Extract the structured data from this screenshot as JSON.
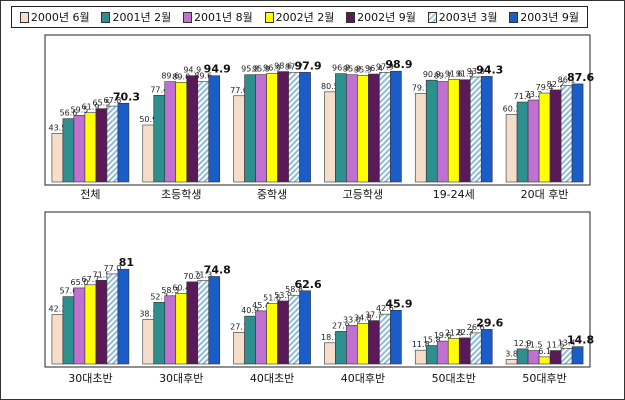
{
  "chart_data": [
    {
      "type": "bar",
      "categories": [
        "전체",
        "초등학생",
        "중학생",
        "고등학생",
        "19-24세",
        "20대 후반"
      ],
      "series": [
        {
          "name": "2000년 6월",
          "values": [
            43.5,
            50.9,
            77.0,
            80.5,
            79.1,
            60.3
          ]
        },
        {
          "name": "2001년 2월",
          "values": [
            56.6,
            77.4,
            95.8,
            96.8,
            90.9,
            71.4
          ]
        },
        {
          "name": "2001년 8월",
          "values": [
            59.5,
            89.6,
            95.9,
            95.8,
            89.7,
            73.2
          ]
        },
        {
          "name": "2002년 2월",
          "values": [
            61.9,
            89.0,
            96.9,
            95.3,
            91.6,
            79.4
          ]
        },
        {
          "name": "2002년 9월",
          "values": [
            65.5,
            94.9,
            98.6,
            96.4,
            91.3,
            82.2
          ]
        },
        {
          "name": "2003년 3월",
          "values": [
            67.8,
            89.6,
            97.7,
            97.9,
            93.8,
            86.1
          ]
        },
        {
          "name": "2003년 9월",
          "values": [
            70.3,
            94.9,
            97.9,
            98.9,
            94.3,
            87.6
          ]
        }
      ],
      "ylim": [
        0,
        100
      ]
    },
    {
      "type": "bar",
      "categories": [
        "30대초반",
        "30대후반",
        "40대초반",
        "40대후반",
        "50대초반",
        "50대후반"
      ],
      "series": [
        {
          "name": "2000년 6월",
          "values": [
            42.3,
            38.1,
            27.1,
            18.1,
            11.8,
            3.8
          ]
        },
        {
          "name": "2001년 2월",
          "values": [
            57.6,
            52.7,
            40.9,
            27.9,
            15.8,
            12.9
          ]
        },
        {
          "name": "2001년 8월",
          "values": [
            65.0,
            58.3,
            45.4,
            33.0,
            19.6,
            11.5
          ]
        },
        {
          "name": "2002년 2월",
          "values": [
            67.7,
            60.4,
            51.6,
            34.8,
            21.8,
            6.1
          ]
        },
        {
          "name": "2002년 9월",
          "values": [
            71.5,
            70.2,
            53.9,
            37.1,
            22.3,
            11.5
          ]
        },
        {
          "name": "2003년 3월",
          "values": [
            77.0,
            71.3,
            58.8,
            42.6,
            26.6,
            13.4
          ]
        },
        {
          "name": "2003년 9월",
          "values": [
            81.0,
            74.8,
            62.6,
            45.9,
            29.6,
            14.8
          ]
        }
      ],
      "ylim": [
        0,
        100
      ]
    }
  ],
  "legend": {
    "items": [
      {
        "label": "2000년 6월",
        "color": "#f5ddc9"
      },
      {
        "label": "2001년 2월",
        "color": "#2e8f8f"
      },
      {
        "label": "2001년 8월",
        "color": "#c070d0"
      },
      {
        "label": "2002년 2월",
        "color": "#ffff00"
      },
      {
        "label": "2002년 9월",
        "color": "#5a1a5a"
      },
      {
        "label": "2003년 3월",
        "color": "#9ec8e0"
      },
      {
        "label": "2003년 9월",
        "color": "#1a5cc8"
      }
    ]
  }
}
